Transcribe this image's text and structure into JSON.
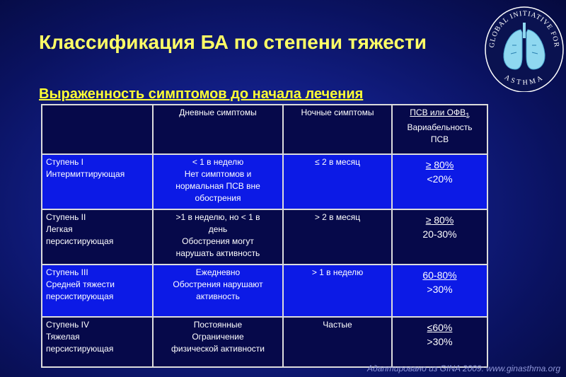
{
  "slide": {
    "title": "Классификация БА по степени тяжести",
    "subtitle": "Выраженность симптомов до начала лечения",
    "footer": "Адаптировано из GINA 2009: www.ginasthma.org"
  },
  "logo": {
    "top_text": "GLOBAL INITIATIVE FOR",
    "bottom_text": "ASTHMA",
    "icon": "lungs-icon",
    "colors": {
      "ring": "#ffffff",
      "lungs": "#8fd8f0",
      "bg": "#0a1250"
    }
  },
  "table": {
    "headers": {
      "severity": "",
      "day": "Дневные симптомы",
      "night": "Ночные симптомы",
      "pef_line1": "ПСВ или ОФВ",
      "pef_sub": "1",
      "pef_line2": "Вариабельность",
      "pef_line3": "ПСВ"
    },
    "rows": [
      {
        "step": "Ступень I",
        "type": "Интермиттирующая",
        "day": [
          "< 1 в неделю",
          "Нет симптомов и",
          "нормальная ПСВ вне",
          "обострения"
        ],
        "night_symbol": "≤",
        "night_text": " 2 в месяц",
        "pef1_symbol": "≥",
        "pef1_text": " 80%",
        "pef2": "<20%"
      },
      {
        "step": "Ступень II",
        "type": "Легкая",
        "type2": "персистирующая",
        "day": [
          ">1 в неделю, но < 1 в",
          "день",
          "Обострения могут",
          "нарушать активность"
        ],
        "night": "> 2 в месяц",
        "pef1_symbol": "≥",
        "pef1_text": " 80%",
        "pef2": "20-30%"
      },
      {
        "step": "Ступень III",
        "type": "Средней тяжести",
        "type2": "персистирующая",
        "day": [
          "Ежедневно",
          "Обострения нарушают",
          "активность"
        ],
        "night": "> 1 в неделю",
        "pef1": "60-80%",
        "pef2": ">30%"
      },
      {
        "step": "Ступень IV",
        "type": "Тяжелая",
        "type2": "персистирующая",
        "day": [
          "Постоянные",
          "Ограничение",
          "физической активности"
        ],
        "night": "Частые",
        "pef1_symbol": "≤",
        "pef1_text": "60%",
        "pef2": ">30%"
      }
    ]
  },
  "colors": {
    "title": "#ffff66",
    "subtitle": "#ffff33",
    "dark_row": "#06094a",
    "blue_row": "#0c1ae6",
    "footer": "#8f96d8"
  }
}
